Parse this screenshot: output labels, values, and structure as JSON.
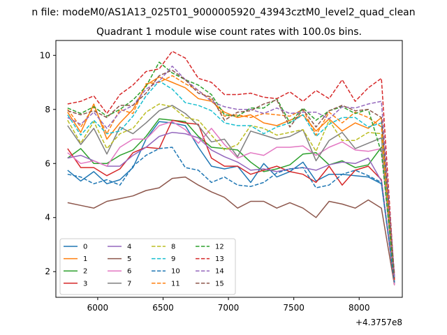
{
  "chart_data": {
    "type": "line",
    "suptitle": "n file: modeM0/AS1A13_025T01_9000005920_43943cztM0_level2_quad_clean",
    "title": "Quadrant 1 module wise count rates with 100.0s bins.",
    "x_offset_label": "+4.3757e8",
    "xlim": [
      5680,
      8330
    ],
    "ylim": [
      1.05,
      10.55
    ],
    "x_ticks": [
      6000,
      6500,
      7000,
      7500,
      8000
    ],
    "y_ticks": [
      2,
      4,
      6,
      8,
      10
    ],
    "x": [
      5770,
      5870,
      5970,
      6070,
      6170,
      6270,
      6370,
      6470,
      6570,
      6670,
      6770,
      6870,
      6970,
      7070,
      7170,
      7270,
      7370,
      7470,
      7570,
      7670,
      7770,
      7870,
      7970,
      8070,
      8170,
      8270
    ],
    "legend": {
      "location": "lower-left",
      "columns": 4
    },
    "series": [
      {
        "name": "0",
        "color": "#1f77b4",
        "dash": "solid",
        "values": [
          5.75,
          5.35,
          5.7,
          5.25,
          5.4,
          5.85,
          6.9,
          7.55,
          7.5,
          7.4,
          6.6,
          5.9,
          5.8,
          5.9,
          5.3,
          6.0,
          5.5,
          5.7,
          6.05,
          5.35,
          5.6,
          5.6,
          5.55,
          5.5,
          5.25,
          1.6
        ]
      },
      {
        "name": "1",
        "color": "#ff7f0e",
        "dash": "solid",
        "values": [
          7.9,
          7.15,
          8.2,
          6.9,
          7.5,
          8.0,
          8.9,
          9.2,
          9.0,
          8.8,
          8.4,
          8.3,
          7.9,
          7.7,
          7.8,
          7.5,
          7.4,
          7.6,
          7.8,
          7.2,
          7.65,
          7.2,
          7.5,
          7.3,
          7.7,
          1.7
        ]
      },
      {
        "name": "2",
        "color": "#2ca02c",
        "dash": "solid",
        "values": [
          6.2,
          6.55,
          6.0,
          6.0,
          6.3,
          6.5,
          7.0,
          7.65,
          7.6,
          7.55,
          7.0,
          6.6,
          6.55,
          6.5,
          6.05,
          5.7,
          5.8,
          5.95,
          6.35,
          6.4,
          5.95,
          6.1,
          5.85,
          5.95,
          6.6,
          1.55
        ]
      },
      {
        "name": "3",
        "color": "#d62728",
        "dash": "solid",
        "values": [
          6.55,
          5.85,
          5.85,
          5.55,
          5.8,
          6.4,
          6.6,
          6.55,
          7.6,
          7.5,
          7.45,
          6.2,
          5.9,
          5.9,
          5.6,
          5.75,
          5.9,
          5.7,
          5.6,
          5.3,
          5.9,
          5.2,
          5.75,
          5.9,
          5.4,
          1.5
        ]
      },
      {
        "name": "4",
        "color": "#9467bd",
        "dash": "solid",
        "values": [
          6.2,
          6.3,
          6.1,
          5.9,
          5.9,
          6.3,
          6.6,
          7.0,
          7.15,
          7.1,
          6.95,
          6.5,
          6.25,
          6.05,
          5.75,
          5.8,
          5.7,
          5.8,
          5.85,
          5.75,
          5.95,
          6.05,
          6.0,
          6.2,
          5.35,
          1.55
        ]
      },
      {
        "name": "5",
        "color": "#8c564b",
        "dash": "solid",
        "values": [
          4.55,
          4.45,
          4.35,
          4.6,
          4.7,
          4.8,
          5.0,
          5.1,
          5.45,
          5.5,
          5.2,
          4.95,
          4.75,
          4.35,
          4.6,
          4.6,
          4.35,
          4.55,
          4.35,
          4.0,
          4.6,
          4.5,
          4.35,
          4.65,
          4.35,
          1.5
        ]
      },
      {
        "name": "6",
        "color": "#e377c2",
        "dash": "solid",
        "values": [
          6.4,
          6.0,
          6.1,
          5.9,
          6.6,
          6.9,
          6.9,
          7.4,
          7.55,
          7.25,
          6.75,
          7.3,
          6.7,
          6.2,
          6.4,
          6.3,
          6.6,
          6.6,
          6.65,
          6.3,
          6.6,
          6.8,
          6.5,
          6.45,
          6.55,
          1.5
        ]
      },
      {
        "name": "7",
        "color": "#7f7f7f",
        "dash": "solid",
        "values": [
          7.4,
          6.7,
          7.3,
          6.35,
          7.35,
          7.1,
          7.5,
          7.95,
          8.15,
          7.85,
          7.4,
          6.8,
          6.9,
          6.25,
          7.2,
          7.05,
          6.9,
          7.0,
          7.25,
          6.1,
          6.85,
          7.15,
          6.55,
          6.75,
          6.95,
          1.6
        ]
      },
      {
        "name": "8",
        "color": "#bcbd22",
        "dash": "dashed",
        "values": [
          7.6,
          6.75,
          7.55,
          6.55,
          7.1,
          7.3,
          7.9,
          8.2,
          8.1,
          7.7,
          7.6,
          7.05,
          6.5,
          6.7,
          7.4,
          7.3,
          7.05,
          7.15,
          7.25,
          6.45,
          7.6,
          6.85,
          6.85,
          7.15,
          7.1,
          1.7
        ]
      },
      {
        "name": "9",
        "color": "#17becf",
        "dash": "dashed",
        "values": [
          7.8,
          7.05,
          7.6,
          7.1,
          7.2,
          7.75,
          8.5,
          9.05,
          8.75,
          8.25,
          8.15,
          7.95,
          7.5,
          7.4,
          7.4,
          7.1,
          7.35,
          7.5,
          7.8,
          7.0,
          7.45,
          7.7,
          7.7,
          7.35,
          7.5,
          1.8
        ]
      },
      {
        "name": "10",
        "color": "#1f77b4",
        "dash": "dashed",
        "values": [
          5.6,
          5.5,
          5.25,
          5.4,
          5.2,
          5.9,
          6.3,
          6.55,
          6.6,
          5.85,
          5.75,
          5.3,
          5.5,
          5.2,
          5.15,
          5.3,
          5.65,
          5.8,
          5.85,
          5.1,
          5.2,
          5.6,
          5.75,
          5.55,
          5.3,
          1.6
        ]
      },
      {
        "name": "11",
        "color": "#ff7f0e",
        "dash": "dashed",
        "values": [
          8.0,
          7.35,
          8.1,
          7.1,
          8.0,
          7.85,
          8.95,
          9.0,
          9.25,
          8.95,
          8.7,
          8.35,
          7.75,
          7.8,
          7.7,
          7.85,
          7.8,
          7.75,
          8.0,
          7.05,
          7.9,
          7.5,
          7.9,
          7.7,
          7.35,
          1.8
        ]
      },
      {
        "name": "12",
        "color": "#2ca02c",
        "dash": "dashed",
        "values": [
          8.05,
          7.85,
          8.1,
          7.75,
          8.0,
          8.35,
          8.85,
          9.75,
          9.35,
          9.1,
          8.9,
          8.55,
          7.8,
          7.75,
          8.05,
          8.05,
          8.4,
          7.5,
          8.05,
          7.6,
          7.95,
          8.1,
          7.85,
          8.0,
          6.4,
          1.75
        ]
      },
      {
        "name": "13",
        "color": "#d62728",
        "dash": "dashed",
        "values": [
          8.2,
          8.3,
          8.5,
          7.85,
          8.55,
          8.9,
          9.4,
          9.5,
          10.15,
          9.9,
          9.15,
          9.0,
          8.55,
          8.55,
          8.6,
          8.45,
          8.4,
          8.65,
          8.3,
          8.7,
          8.4,
          9.1,
          8.3,
          8.8,
          9.15,
          1.7
        ]
      },
      {
        "name": "14",
        "color": "#9467bd",
        "dash": "dashed",
        "values": [
          7.7,
          7.45,
          7.9,
          7.3,
          7.9,
          8.15,
          8.75,
          9.05,
          9.6,
          9.1,
          8.7,
          8.3,
          8.1,
          8.0,
          8.0,
          7.85,
          8.05,
          7.85,
          7.9,
          7.9,
          7.65,
          8.1,
          8.05,
          8.2,
          8.3,
          1.8
        ]
      },
      {
        "name": "15",
        "color": "#8c564b",
        "dash": "dashed",
        "values": [
          7.95,
          7.8,
          7.95,
          7.7,
          8.15,
          8.15,
          8.6,
          9.25,
          9.45,
          9.1,
          8.6,
          8.45,
          7.6,
          7.9,
          7.95,
          8.2,
          8.35,
          7.35,
          8.0,
          7.35,
          7.95,
          8.15,
          7.95,
          8.0,
          7.7,
          1.9
        ]
      }
    ]
  }
}
